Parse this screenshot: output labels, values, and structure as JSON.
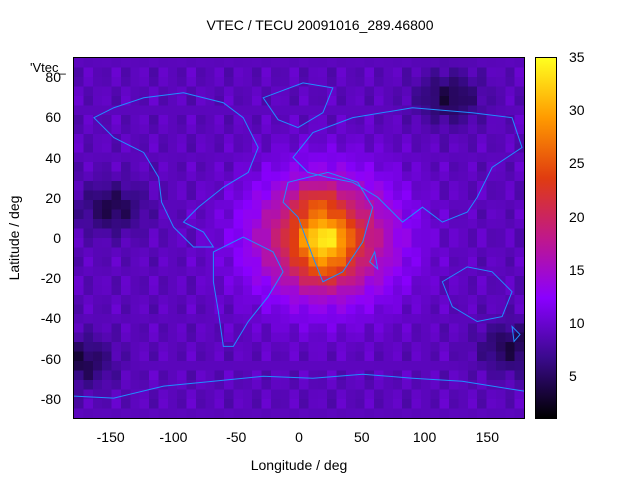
{
  "chart_data": {
    "type": "heatmap",
    "title": "VTEC / TECU 20091016_289.46800",
    "xlabel": "Longitude / deg",
    "ylabel": "Latitude / deg",
    "series_label_artifact": "'Vtec_",
    "xlim": [
      -180,
      180
    ],
    "ylim": [
      -90,
      90
    ],
    "x_ticks": [
      -150,
      -100,
      -50,
      0,
      50,
      100,
      150
    ],
    "y_ticks": [
      -80,
      -60,
      -40,
      -20,
      0,
      20,
      40,
      60,
      80
    ],
    "colorbar": {
      "range": [
        1,
        35
      ],
      "ticks": [
        5,
        10,
        15,
        20,
        25,
        30,
        35
      ],
      "colormap": [
        "#000000",
        "#3a0a8c",
        "#8a00ff",
        "#c0188a",
        "#e03c10",
        "#ff9a00",
        "#ffff20"
      ]
    },
    "overlay": "coastlines",
    "features": {
      "background_value": 9,
      "equatorial_peak": {
        "lon": 20,
        "lat": 0,
        "value": 34
      },
      "anomaly_crest_north": {
        "lon": 15,
        "lat": 18,
        "value": 30
      },
      "anomaly_crest_south": {
        "lon": 20,
        "lat": -15,
        "value": 29
      },
      "lows": [
        {
          "lon": -175,
          "lat": -62,
          "value": 3
        },
        {
          "lon": 170,
          "lat": -55,
          "value": 4
        },
        {
          "lon": -150,
          "lat": 15,
          "value": 4
        },
        {
          "lon": 120,
          "lat": 70,
          "value": 5
        }
      ]
    }
  }
}
